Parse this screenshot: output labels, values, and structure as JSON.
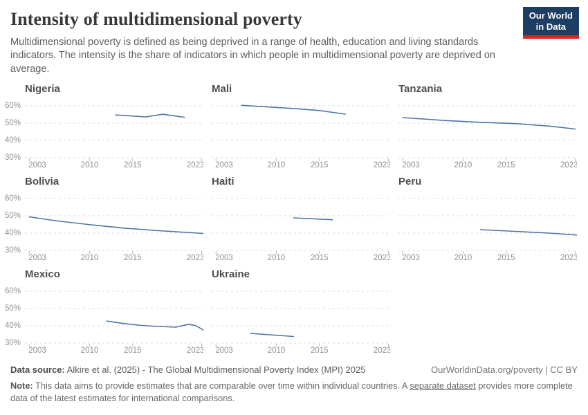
{
  "header": {
    "title": "Intensity of multidimensional poverty",
    "subtitle": "Multidimensional poverty is defined as being deprived in a range of health, education and living standards indicators. The intensity is the share of indicators in which people in multidimensional poverty are deprived on average."
  },
  "logo": {
    "line1": "Our World",
    "line2": "in Data",
    "bg_color": "#1d3d63",
    "stripe_color": "#d42a20"
  },
  "axes": {
    "y_tick_labels": [
      "60%",
      "50%",
      "40%",
      "30%"
    ],
    "x_tick_labels": [
      "2003",
      "2010",
      "2015",
      "2023"
    ]
  },
  "chart_data": {
    "type": "line",
    "title": "Intensity of multidimensional poverty",
    "unit": "%",
    "x_domain": [
      2002.5,
      2023.2
    ],
    "x_ticks": [
      2003,
      2010,
      2015,
      2023
    ],
    "y_gridlines": [
      60,
      50,
      40,
      30
    ],
    "ylim": [
      30,
      62
    ],
    "grid": "dashed-horizontal",
    "legend": "none (small multiples, one panel per country)",
    "line_color": "#4e73a7",
    "grid_color": "#dadada",
    "tick_color": "#b5b5b5",
    "tick_label_color": "#8f8f8f",
    "facets": [
      {
        "name": "Nigeria",
        "points": [
          [
            2013,
            54.7
          ],
          [
            2016.5,
            53.6
          ],
          [
            2018.5,
            55.1
          ],
          [
            2021,
            53.4
          ]
        ]
      },
      {
        "name": "Mali",
        "points": [
          [
            2006,
            60.3
          ],
          [
            2012.5,
            58.3
          ],
          [
            2015,
            57.3
          ],
          [
            2018,
            55.2
          ]
        ]
      },
      {
        "name": "Tanzania",
        "points": [
          [
            2003,
            53.2
          ],
          [
            2008,
            51.5
          ],
          [
            2012,
            50.5
          ],
          [
            2016,
            49.7
          ],
          [
            2020,
            48.3
          ],
          [
            2023,
            46.6
          ]
        ]
      },
      {
        "name": "Bolivia",
        "points": [
          [
            2003,
            49.4
          ],
          [
            2006,
            47.2
          ],
          [
            2010,
            44.9
          ],
          [
            2014,
            42.9
          ],
          [
            2018,
            41.4
          ],
          [
            2023.2,
            39.8
          ]
        ]
      },
      {
        "name": "Haiti",
        "points": [
          [
            2012,
            48.8
          ],
          [
            2016.5,
            47.7
          ]
        ]
      },
      {
        "name": "Peru",
        "points": [
          [
            2012,
            42.0
          ],
          [
            2016,
            41.0
          ],
          [
            2020,
            40.0
          ],
          [
            2023.2,
            38.9
          ]
        ]
      },
      {
        "name": "Mexico",
        "points": [
          [
            2012,
            42.7
          ],
          [
            2014,
            41.3
          ],
          [
            2016,
            40.2
          ],
          [
            2018,
            39.6
          ],
          [
            2020,
            39.2
          ],
          [
            2021.5,
            40.9
          ],
          [
            2022.3,
            40.1
          ],
          [
            2023.2,
            37.6
          ]
        ]
      },
      {
        "name": "Ukraine",
        "points": [
          [
            2007,
            35.6
          ],
          [
            2012,
            33.8
          ]
        ]
      }
    ]
  },
  "footer": {
    "source_label": "Data source:",
    "source_text": "Alkire et al. (2025) - The Global Multidimensional Poverty Index (MPI) 2025",
    "credit": "OurWorldinData.org/poverty | CC BY",
    "note_label": "Note:",
    "note_before": "This data aims to provide estimates that are comparable over time within individual countries. A ",
    "note_link": "separate dataset",
    "note_after": " provides more complete data of the latest estimates for international comparisons."
  }
}
